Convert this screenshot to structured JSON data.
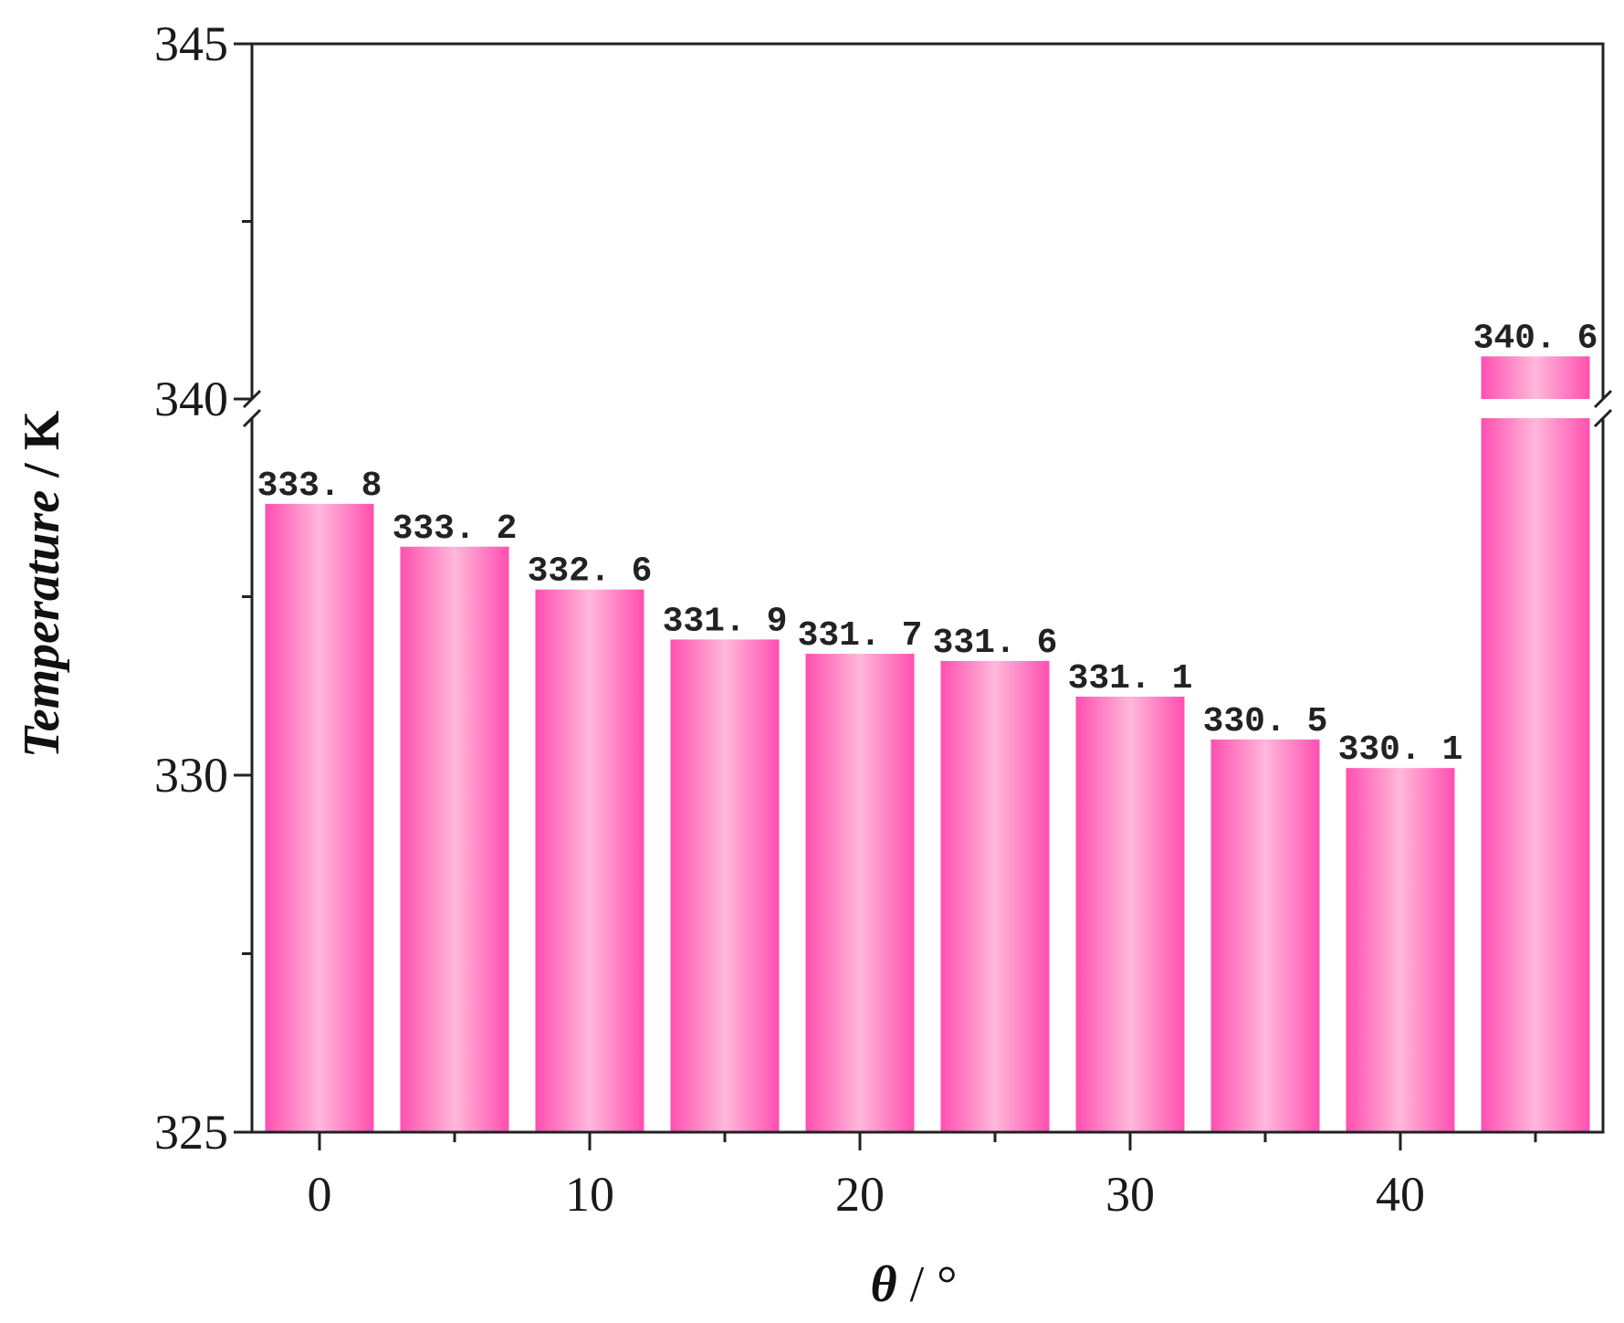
{
  "chart_data": {
    "type": "bar",
    "title": "",
    "x_label": {
      "symbol": "θ",
      "unit": " / °"
    },
    "y_label": {
      "quantity": "Temperature",
      "unit": " / K"
    },
    "x": [
      0,
      5,
      10,
      15,
      20,
      25,
      30,
      35,
      40,
      45
    ],
    "values": [
      333.8,
      333.2,
      332.6,
      331.9,
      331.7,
      331.6,
      331.1,
      330.5,
      330.1,
      340.6
    ],
    "value_labels": [
      "333. 8",
      "333. 2",
      "332. 6",
      "331. 9",
      "331. 7",
      "331. 6",
      "331. 1",
      "330. 5",
      "330. 1",
      "340. 6"
    ],
    "x_ticks": [
      0,
      10,
      20,
      30,
      40
    ],
    "x_tick_labels": [
      "0",
      "10",
      "20",
      "30",
      "40"
    ],
    "x_minor_ticks": [
      5,
      15,
      25,
      35,
      45
    ],
    "xlim": [
      -2.5,
      47.5
    ],
    "y_axis_break": {
      "lower_segment": [
        325,
        335
      ],
      "upper_segment": [
        340,
        345
      ]
    },
    "y_ticks": [
      325,
      330,
      340,
      345
    ],
    "y_tick_labels": [
      "325",
      "330",
      "340",
      "345"
    ],
    "y_minor_ticks": [
      327.5,
      332.5,
      342.5
    ],
    "bar_color_edge": "#ff4fb0",
    "bar_color_center": "#ffb8da",
    "grid": false,
    "legend": "none"
  }
}
